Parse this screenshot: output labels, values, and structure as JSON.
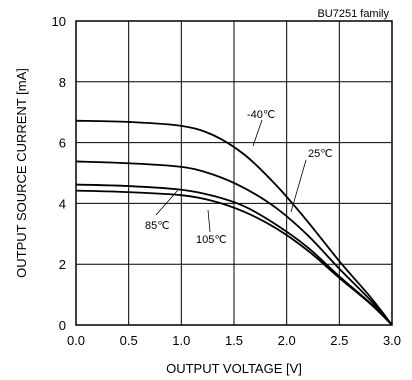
{
  "chart_data": {
    "type": "line",
    "annotation": "BU7251 family",
    "xlabel": "OUTPUT VOLTAGE [V]",
    "ylabel": "OUTPUT SOURCE CURRENT [mA]",
    "xlim": [
      0,
      3
    ],
    "ylim": [
      0,
      10
    ],
    "xticks": [
      "0.0",
      "0.5",
      "1.0",
      "1.5",
      "2.0",
      "2.5",
      "3.0"
    ],
    "yticks": [
      "0",
      "2",
      "4",
      "6",
      "8",
      "10"
    ],
    "grid": true,
    "legend": "none",
    "series": [
      {
        "name": "-40℃",
        "x": [
          0,
          0.5,
          1.0,
          1.3,
          1.6,
          1.9,
          2.2,
          2.5,
          2.8,
          3.0
        ],
        "y": [
          6.72,
          6.68,
          6.55,
          6.25,
          5.6,
          4.6,
          3.4,
          2.1,
          0.9,
          0.0
        ]
      },
      {
        "name": "25℃",
        "x": [
          0,
          0.5,
          1.0,
          1.3,
          1.6,
          1.9,
          2.2,
          2.5,
          2.8,
          3.0
        ],
        "y": [
          5.38,
          5.32,
          5.2,
          4.95,
          4.5,
          3.85,
          2.95,
          1.85,
          0.8,
          0.0
        ]
      },
      {
        "name": "85℃",
        "x": [
          0,
          0.5,
          1.0,
          1.3,
          1.6,
          1.9,
          2.2,
          2.5,
          2.8,
          3.0
        ],
        "y": [
          4.62,
          4.57,
          4.45,
          4.25,
          3.9,
          3.3,
          2.55,
          1.6,
          0.7,
          0.0
        ]
      },
      {
        "name": "105℃",
        "x": [
          0,
          0.5,
          1.0,
          1.3,
          1.6,
          1.9,
          2.2,
          2.5,
          2.8,
          3.0
        ],
        "y": [
          4.42,
          4.37,
          4.27,
          4.08,
          3.72,
          3.18,
          2.45,
          1.55,
          0.68,
          0.0
        ]
      }
    ]
  }
}
